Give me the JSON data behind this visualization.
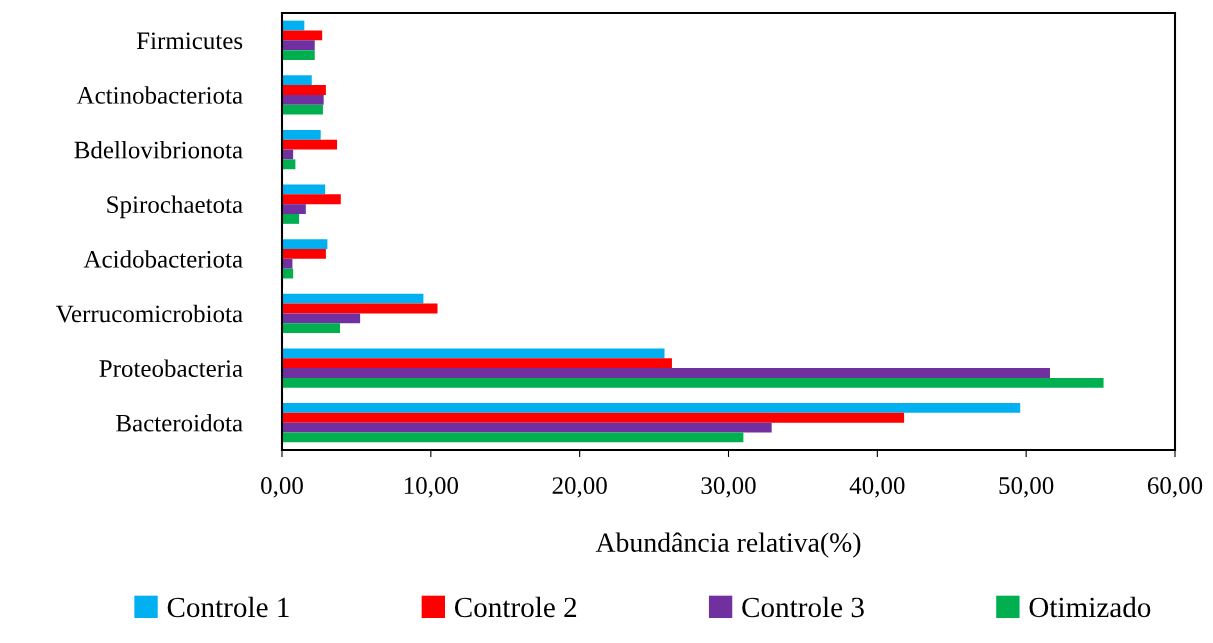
{
  "chart_data": {
    "type": "bar",
    "orientation": "horizontal",
    "xlabel": "Abundância relativa(%)",
    "categories": [
      "Firmicutes",
      "Actinobacteriota",
      "Bdellovibrionota",
      "Spirochaetota",
      "Acidobacteriota",
      "Verrucomicrobiota",
      "Proteobacteria",
      "Bacteroidota"
    ],
    "series": [
      {
        "name": "Controle 1",
        "color": "#00b0f0",
        "values": [
          1.5,
          2.0,
          2.6,
          2.9,
          3.05,
          9.5,
          25.7,
          49.6
        ]
      },
      {
        "name": "Controle 2",
        "color": "#ff0000",
        "values": [
          2.7,
          2.95,
          3.7,
          3.95,
          2.95,
          10.45,
          26.2,
          41.8
        ]
      },
      {
        "name": "Controle 3",
        "color": "#7030a0",
        "values": [
          2.2,
          2.8,
          0.75,
          1.6,
          0.7,
          5.25,
          51.6,
          32.9
        ]
      },
      {
        "name": "Otimizado",
        "color": "#00b050",
        "values": [
          2.2,
          2.75,
          0.9,
          1.15,
          0.75,
          3.9,
          55.2,
          31.0
        ]
      }
    ],
    "xlim": [
      0,
      60
    ],
    "xticks": [
      {
        "value": 0,
        "label": "0,00"
      },
      {
        "value": 10,
        "label": "10,00"
      },
      {
        "value": 20,
        "label": "20,00"
      },
      {
        "value": 30,
        "label": "30,00"
      },
      {
        "value": 40,
        "label": "40,00"
      },
      {
        "value": 50,
        "label": "50,00"
      },
      {
        "value": 60,
        "label": "60,00"
      }
    ],
    "grid": false,
    "legend": "bottom"
  }
}
